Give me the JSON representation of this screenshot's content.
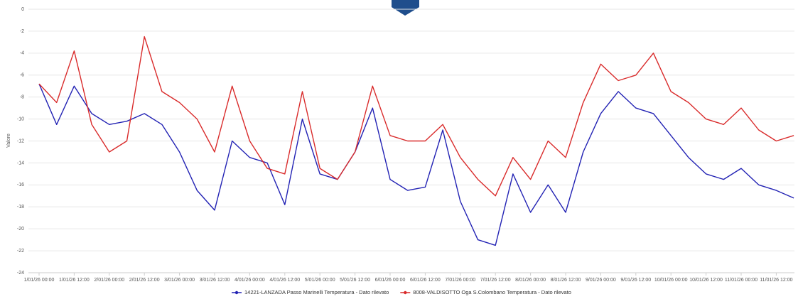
{
  "chart_data": {
    "type": "line",
    "y_label": "Valore",
    "categories": [
      "1/01/26 00:00",
      null,
      "1/01/26 12:00",
      null,
      "2/01/26 00:00",
      null,
      "2/01/26 12:00",
      null,
      "3/01/26 00:00",
      null,
      "3/01/26 12:00",
      null,
      "4/01/26 00:00",
      null,
      "4/01/26 12:00",
      null,
      "5/01/26 00:00",
      null,
      "5/01/26 12:00",
      null,
      "6/01/26 00:00",
      null,
      "6/01/26 12:00",
      null,
      "7/01/26 00:00",
      null,
      "7/01/26 12:00",
      null,
      "8/01/26 00:00",
      null,
      "8/01/26 12:00",
      null,
      "9/01/26 00:00",
      null,
      "9/01/26 12:00",
      null,
      "10/01/26 00:00",
      null,
      "10/01/26 12:00",
      null,
      "11/01/26 00:00",
      null,
      "11/01/26 12:00",
      null
    ],
    "series": [
      {
        "name": "14221-LANZADA Passo Marinelli Temperatura - Dato rilevato",
        "color": "#2323b4",
        "values": [
          -6.8,
          -10.5,
          -7.0,
          -9.5,
          -10.5,
          -10.2,
          -9.5,
          -10.5,
          -13.0,
          -16.5,
          -18.3,
          -12.0,
          -13.5,
          -14.0,
          -17.8,
          -10.0,
          -15.0,
          -15.5,
          -13.0,
          -9.0,
          -15.5,
          -16.5,
          -16.2,
          -11.0,
          -17.5,
          -21.0,
          -21.5,
          -15.0,
          -18.5,
          -16.0,
          -18.5,
          -13.0,
          -9.5,
          -7.5,
          -9.0,
          -9.5,
          -11.5,
          -13.5,
          -15.0,
          -15.5,
          -14.5,
          -16.0,
          -16.5,
          -17.2
        ]
      },
      {
        "name": "8008-VALDISOTTO Oga S.Colombano Temperatura - Dato rilevato",
        "color": "#d92b2b",
        "values": [
          -6.8,
          -8.5,
          -3.8,
          -10.5,
          -13.0,
          -12.0,
          -2.5,
          -7.5,
          -8.5,
          -10.0,
          -13.0,
          -7.0,
          -12.0,
          -14.5,
          -15.0,
          -7.5,
          -14.5,
          -15.5,
          -13.0,
          -7.0,
          -11.5,
          -12.0,
          -12.0,
          -10.5,
          -13.5,
          -15.5,
          -17.0,
          -13.5,
          -15.5,
          -12.0,
          -13.5,
          -8.5,
          -5.0,
          -6.5,
          -6.0,
          -4.0,
          -7.5,
          -8.5,
          -10.0,
          -10.5,
          -9.0,
          -11.0,
          -12.0,
          -11.5
        ]
      }
    ],
    "ylim": [
      -24,
      0
    ],
    "yticks": [
      0,
      -2,
      -4,
      -6,
      -8,
      -10,
      -12,
      -14,
      -16,
      -18,
      -20,
      -22,
      -24
    ],
    "grid": true
  }
}
